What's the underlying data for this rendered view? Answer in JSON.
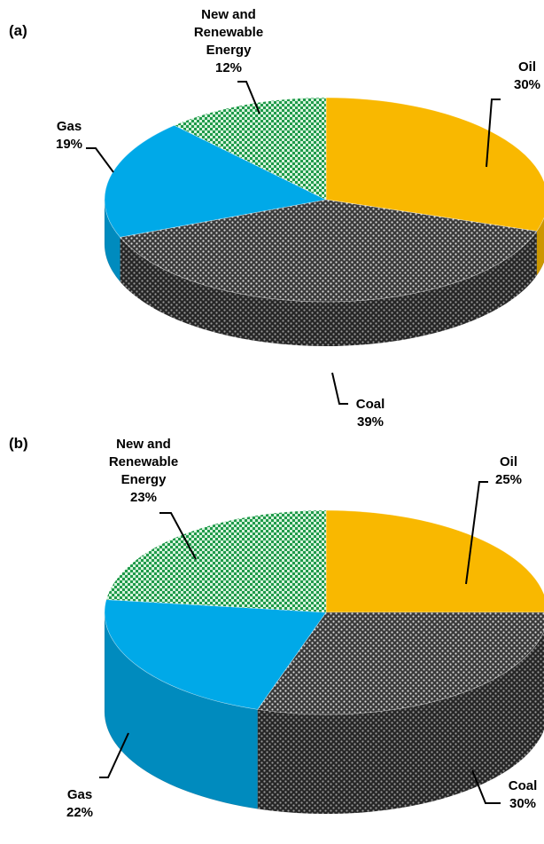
{
  "chart_data": [
    {
      "type": "pie",
      "panel_label": "(a)",
      "slices": [
        {
          "name": "Oil",
          "value": 30,
          "value_label": "30%",
          "color": "#f9b800",
          "pattern": "solid"
        },
        {
          "name": "Coal",
          "value": 39,
          "value_label": "39%",
          "color": "#404040",
          "pattern": "dots"
        },
        {
          "name": "Gas",
          "value": 19,
          "value_label": "19%",
          "color": "#00a9e8",
          "pattern": "solid"
        },
        {
          "name": "New and Renewable Energy",
          "name_lines": [
            "New and",
            "Renewable",
            "Energy"
          ],
          "value": 12,
          "value_label": "12%",
          "color": "#2aa957",
          "pattern": "checker"
        }
      ],
      "style": "3d"
    },
    {
      "type": "pie",
      "panel_label": "(b)",
      "slices": [
        {
          "name": "Oil",
          "value": 25,
          "value_label": "25%",
          "color": "#f9b800",
          "pattern": "solid"
        },
        {
          "name": "Coal",
          "value": 30,
          "value_label": "30%",
          "color": "#404040",
          "pattern": "dots"
        },
        {
          "name": "Gas",
          "value": 22,
          "value_label": "22%",
          "color": "#00a9e8",
          "pattern": "solid"
        },
        {
          "name": "New and Renewable Energy",
          "name_lines": [
            "New and",
            "Renewable",
            "Energy"
          ],
          "value": 23,
          "value_label": "23%",
          "color": "#2aa957",
          "pattern": "checker"
        }
      ],
      "style": "3d"
    }
  ]
}
